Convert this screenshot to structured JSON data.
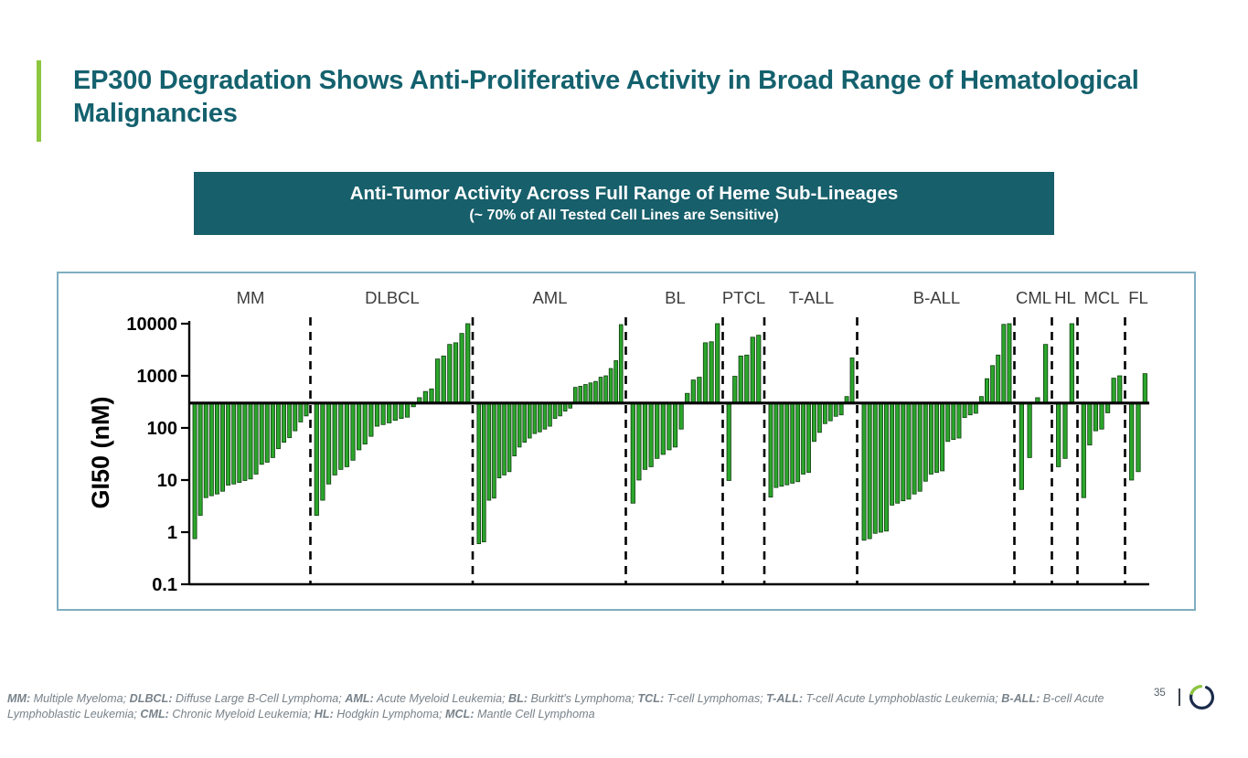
{
  "slide": {
    "title": "EP300 Degradation Shows Anti-Proliferative Activity in Broad Range of Hematological Malignancies",
    "page_number": "35"
  },
  "banner": {
    "line1": "Anti-Tumor Activity Across Full Range of Heme Sub-Lineages",
    "line2": "(~ 70% of All Tested Cell Lines are Sensitive)"
  },
  "footnote": {
    "segments": [
      {
        "abbr": "MM:",
        "def": " Multiple Myeloma; "
      },
      {
        "abbr": "DLBCL:",
        "def": " Diffuse Large B-Cell Lymphoma; "
      },
      {
        "abbr": "AML:",
        "def": " Acute Myeloid Leukemia; "
      },
      {
        "abbr": "BL:",
        "def": " Burkitt's Lymphoma; "
      },
      {
        "abbr": "TCL:",
        "def": " T-cell Lymphomas; "
      },
      {
        "abbr": "T-ALL:",
        "def": " T-cell Acute Lymphoblastic Leukemia; "
      },
      {
        "abbr": "B-ALL:",
        "def": " B-cell Acute Lymphoblastic Leukemia; "
      },
      {
        "abbr": "CML:",
        "def": " Chronic Myeloid Leukemia; "
      },
      {
        "abbr": "HL:",
        "def": " Hodgkin Lymphoma; "
      },
      {
        "abbr": "MCL:",
        "def": " Mantle Cell Lymphoma"
      }
    ]
  },
  "colors": {
    "title_teal": "#14616E",
    "banner_bg": "#175F6B",
    "accent_green": "#8DC63F",
    "bar_green": "#2BA62B",
    "bar_outline": "#0F3D0F",
    "logo_navy": "#1B2B4B",
    "chart_border": "#7FAEC0",
    "axis_black": "#000000",
    "group_label_gray": "#3D3D3D"
  },
  "chart_data": {
    "type": "bar",
    "title": "",
    "xlabel": "",
    "ylabel": "GI50 (nM)",
    "scale": "log",
    "ylim": [
      0.1,
      10000
    ],
    "yticks": [
      10000,
      1000,
      100,
      10,
      1,
      0.1
    ],
    "baseline_nM": 300,
    "grid": false,
    "legend": "none",
    "groups": [
      {
        "label": "MM",
        "values": [
          0.75,
          2.1,
          4.6,
          5.0,
          5.4,
          6.1,
          8.0,
          8.4,
          9.0,
          9.8,
          10.5,
          13,
          20,
          22,
          27,
          40,
          53,
          65,
          88,
          130,
          170
        ]
      },
      {
        "label": "DLBCL",
        "values": [
          2.1,
          4.1,
          8.4,
          12.5,
          16,
          18,
          24,
          38,
          49,
          69,
          108,
          116,
          125,
          140,
          152,
          161,
          255,
          380,
          500,
          560,
          2100,
          2400,
          4000,
          4300,
          6500,
          10000
        ]
      },
      {
        "label": "AML",
        "values": [
          0.6,
          0.65,
          4.1,
          4.5,
          11,
          12.5,
          14.5,
          29,
          43,
          53,
          64,
          78,
          84,
          95,
          108,
          152,
          170,
          210,
          240,
          600,
          630,
          680,
          730,
          780,
          940,
          1000,
          1380,
          1950,
          9600
        ]
      },
      {
        "label": "BL",
        "values": [
          3.6,
          10,
          16,
          18,
          26,
          31,
          38,
          43,
          95,
          460,
          830,
          940,
          4300,
          4500,
          10000
        ]
      },
      {
        "label": "PTCL",
        "values": [
          9.8,
          980,
          2400,
          2500,
          5500,
          6000
        ]
      },
      {
        "label": "T-ALL",
        "values": [
          4.7,
          7.2,
          7.6,
          8.1,
          8.7,
          9.3,
          13,
          14,
          55,
          82,
          121,
          137,
          167,
          178,
          400,
          2200
        ]
      },
      {
        "label": "B-ALL",
        "values": [
          0.7,
          0.75,
          0.95,
          1.0,
          1.05,
          3.3,
          3.6,
          4.0,
          4.3,
          5.4,
          6.1,
          9.5,
          13,
          14,
          15,
          55,
          60,
          64,
          158,
          178,
          191,
          400,
          880,
          1570,
          2500,
          9700,
          10000
        ]
      },
      {
        "label": "CML",
        "values": [
          6.6,
          27,
          380,
          4000
        ]
      },
      {
        "label": "HL",
        "values": [
          18,
          26,
          10000
        ]
      },
      {
        "label": "MCL",
        "values": [
          4.6,
          47,
          88,
          95,
          195,
          900,
          1000
        ]
      },
      {
        "label": "FL",
        "values": [
          10,
          14.5,
          1100
        ]
      }
    ]
  }
}
